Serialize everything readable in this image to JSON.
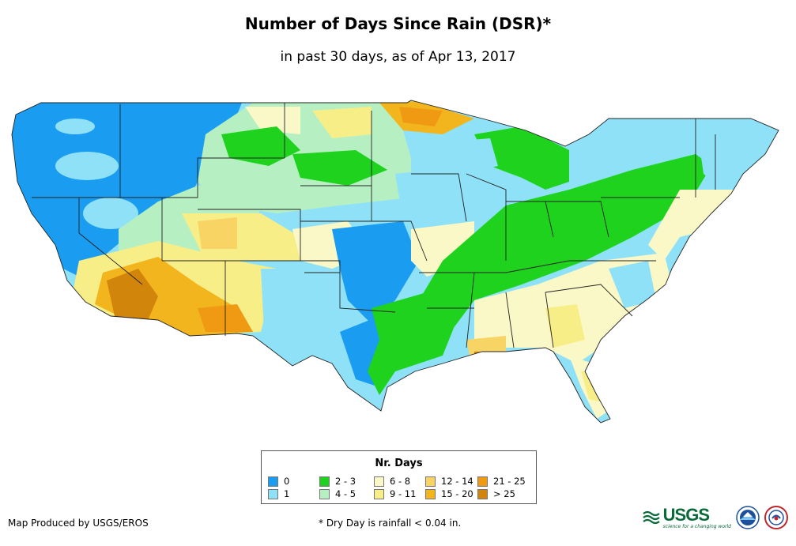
{
  "header": {
    "title": "Number of Days Since Rain (DSR)*",
    "subtitle": "in past 30 days, as of Apr 13, 2017"
  },
  "legend": {
    "title": "Nr. Days",
    "items": [
      {
        "label": "0",
        "color": "#1a9cf0"
      },
      {
        "label": "1",
        "color": "#8ee1f7"
      },
      {
        "label": "2 - 3",
        "color": "#1ed21e"
      },
      {
        "label": "4 - 5",
        "color": "#b6f0c2"
      },
      {
        "label": "6 - 8",
        "color": "#fbf8c8"
      },
      {
        "label": "9 - 11",
        "color": "#f8ee88"
      },
      {
        "label": "12 - 14",
        "color": "#f7d464"
      },
      {
        "label": "15 - 20",
        "color": "#f2b51e"
      },
      {
        "label": "21 - 25",
        "color": "#ef9a12"
      },
      {
        "label": "> 25",
        "color": "#d1850a"
      }
    ]
  },
  "footer": {
    "credit": "Map Produced by USGS/EROS",
    "note": "* Dry Day is rainfall < 0.04 in."
  },
  "logos": {
    "usgs_text": "USGS",
    "usgs_tagline": "science for a changing world",
    "usgs_icon": "usgs-wave-icon",
    "noaa_icon": "noaa-seal-icon",
    "nws_icon": "nws-seal-icon"
  }
}
